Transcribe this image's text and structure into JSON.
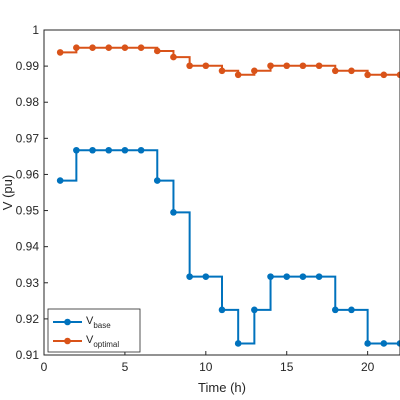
{
  "chart_data": {
    "type": "line",
    "step": true,
    "xlabel": "Time (h)",
    "ylabel": "V (pu)",
    "xlim": [
      0,
      22
    ],
    "ylim": [
      0.91,
      1.0
    ],
    "xticks": [
      0,
      5,
      10,
      15,
      20
    ],
    "yticks": [
      0.91,
      0.92,
      0.93,
      0.94,
      0.95,
      0.96,
      0.97,
      0.98,
      0.99,
      1
    ],
    "grid": false,
    "legend_position": "bottom-left",
    "series": [
      {
        "name": "V",
        "subscript": "base",
        "color": "#0072BD",
        "x": [
          1,
          2,
          3,
          4,
          5,
          6,
          7,
          8,
          9,
          10,
          11,
          12,
          13,
          14,
          15,
          16,
          17,
          18,
          19,
          20,
          21,
          22
        ],
        "values": [
          0.9583,
          0.9667,
          0.9667,
          0.9667,
          0.9667,
          0.9667,
          0.9583,
          0.9495,
          0.9317,
          0.9317,
          0.9225,
          0.9132,
          0.9225,
          0.9317,
          0.9317,
          0.9317,
          0.9317,
          0.9225,
          0.9225,
          0.9132,
          0.9132,
          0.9132
        ]
      },
      {
        "name": "V",
        "subscript": "optimal",
        "color": "#D95319",
        "x": [
          1,
          2,
          3,
          4,
          5,
          6,
          7,
          8,
          9,
          10,
          11,
          12,
          13,
          14,
          15,
          16,
          17,
          18,
          19,
          20,
          21,
          22
        ],
        "values": [
          0.9938,
          0.9951,
          0.9951,
          0.9951,
          0.9951,
          0.9951,
          0.9942,
          0.9925,
          0.9901,
          0.9901,
          0.9887,
          0.9876,
          0.9887,
          0.9901,
          0.9901,
          0.9901,
          0.9901,
          0.9887,
          0.9887,
          0.9876,
          0.9876,
          0.9876
        ]
      }
    ]
  }
}
